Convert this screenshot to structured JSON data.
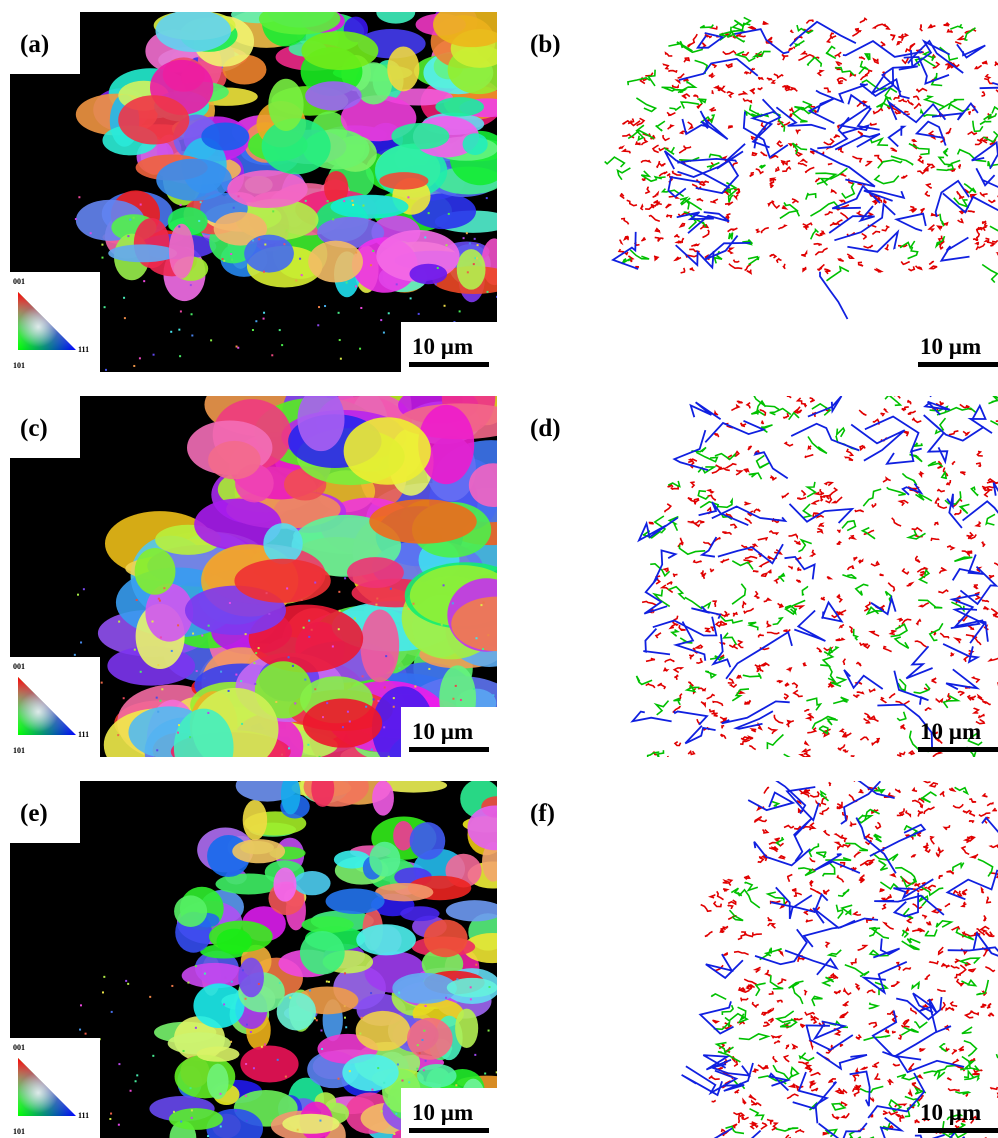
{
  "panels": [
    {
      "label": "(a)",
      "scale_bar": "10 µm",
      "legend": {
        "top": "001",
        "left": "101",
        "right": "111"
      }
    },
    {
      "label": "(b)",
      "scale_bar": "10 µm"
    },
    {
      "label": "(c)",
      "scale_bar": "10 µm",
      "legend": {
        "top": "001",
        "left": "101",
        "right": "111"
      }
    },
    {
      "label": "(d)",
      "scale_bar": "10 µm"
    },
    {
      "label": "(e)",
      "scale_bar": "10 µm",
      "legend": {
        "top": "001",
        "left": "101",
        "right": "111"
      }
    },
    {
      "label": "(f)",
      "scale_bar": "10 µm"
    }
  ]
}
